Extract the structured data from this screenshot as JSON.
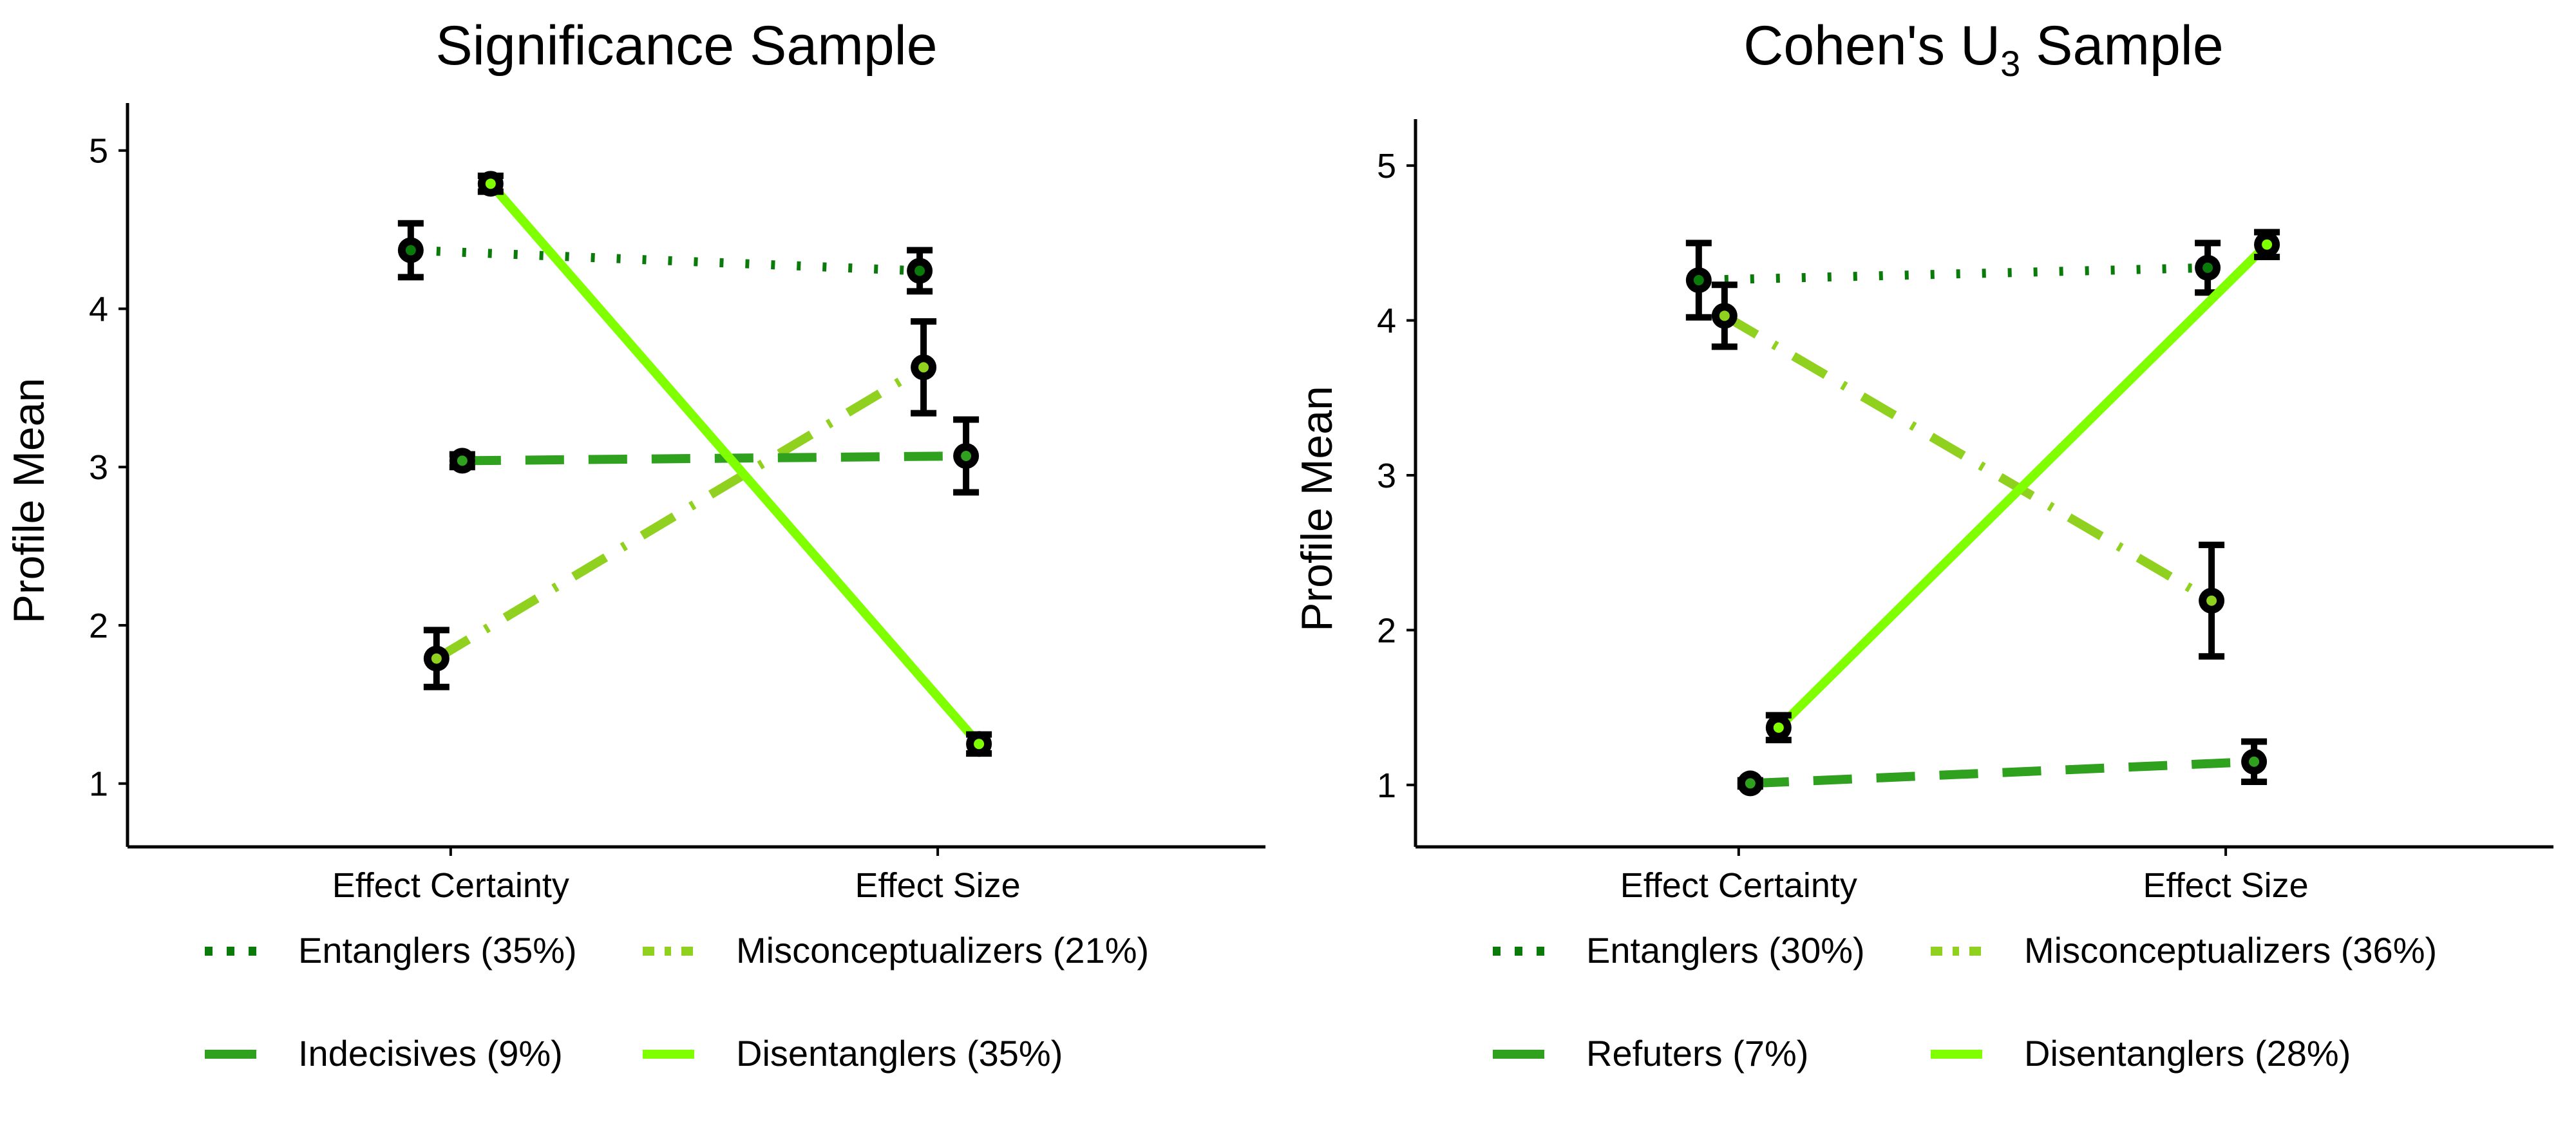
{
  "chart_data": [
    {
      "type": "line",
      "title": "Significance Sample",
      "xlabel": "",
      "ylabel": "Profile Mean",
      "categories": [
        "Effect Certainty",
        "Effect Size"
      ],
      "ylim": [
        0.6,
        5.3
      ],
      "yticks": [
        1,
        2,
        3,
        4,
        5
      ],
      "grid": false,
      "legend_position": "bottom",
      "series": [
        {
          "name": "Entanglers (35%)",
          "style": "dotted",
          "color": "#0a7a0a",
          "values": [
            4.37,
            4.24
          ],
          "errors": [
            0.17,
            0.13
          ]
        },
        {
          "name": "Misconceptualizers (21%)",
          "style": "dashdot",
          "color": "#8fd11e",
          "values": [
            1.79,
            3.63
          ],
          "errors": [
            0.18,
            0.29
          ]
        },
        {
          "name": "Indecisives (9%)",
          "style": "dashed",
          "color": "#2fa11e",
          "values": [
            3.04,
            3.07
          ],
          "errors": [
            0.04,
            0.23
          ]
        },
        {
          "name": "Disentanglers (35%)",
          "style": "solid",
          "color": "#80ff00",
          "values": [
            4.79,
            1.25
          ],
          "errors": [
            0.05,
            0.06
          ]
        }
      ]
    },
    {
      "type": "line",
      "title": "Cohen's  U3  Sample",
      "xlabel": "",
      "ylabel": "Profile Mean",
      "categories": [
        "Effect Certainty",
        "Effect Size"
      ],
      "ylim": [
        0.6,
        5.3
      ],
      "yticks": [
        1,
        2,
        3,
        4,
        5
      ],
      "grid": false,
      "legend_position": "bottom",
      "series": [
        {
          "name": "Entanglers (30%)",
          "style": "dotted",
          "color": "#0a7a0a",
          "values": [
            4.26,
            4.34
          ],
          "errors": [
            0.24,
            0.16
          ]
        },
        {
          "name": "Misconceptualizers (36%)",
          "style": "dashdot",
          "color": "#8fd11e",
          "values": [
            4.03,
            2.19
          ],
          "errors": [
            0.2,
            0.36
          ]
        },
        {
          "name": "Refuters (7%)",
          "style": "dashed",
          "color": "#2fa11e",
          "values": [
            1.01,
            1.15
          ],
          "errors": [
            0.02,
            0.13
          ]
        },
        {
          "name": "Disentanglers (28%)",
          "style": "solid",
          "color": "#80ff00",
          "values": [
            1.37,
            4.49
          ],
          "errors": [
            0.08,
            0.08
          ]
        }
      ]
    }
  ]
}
